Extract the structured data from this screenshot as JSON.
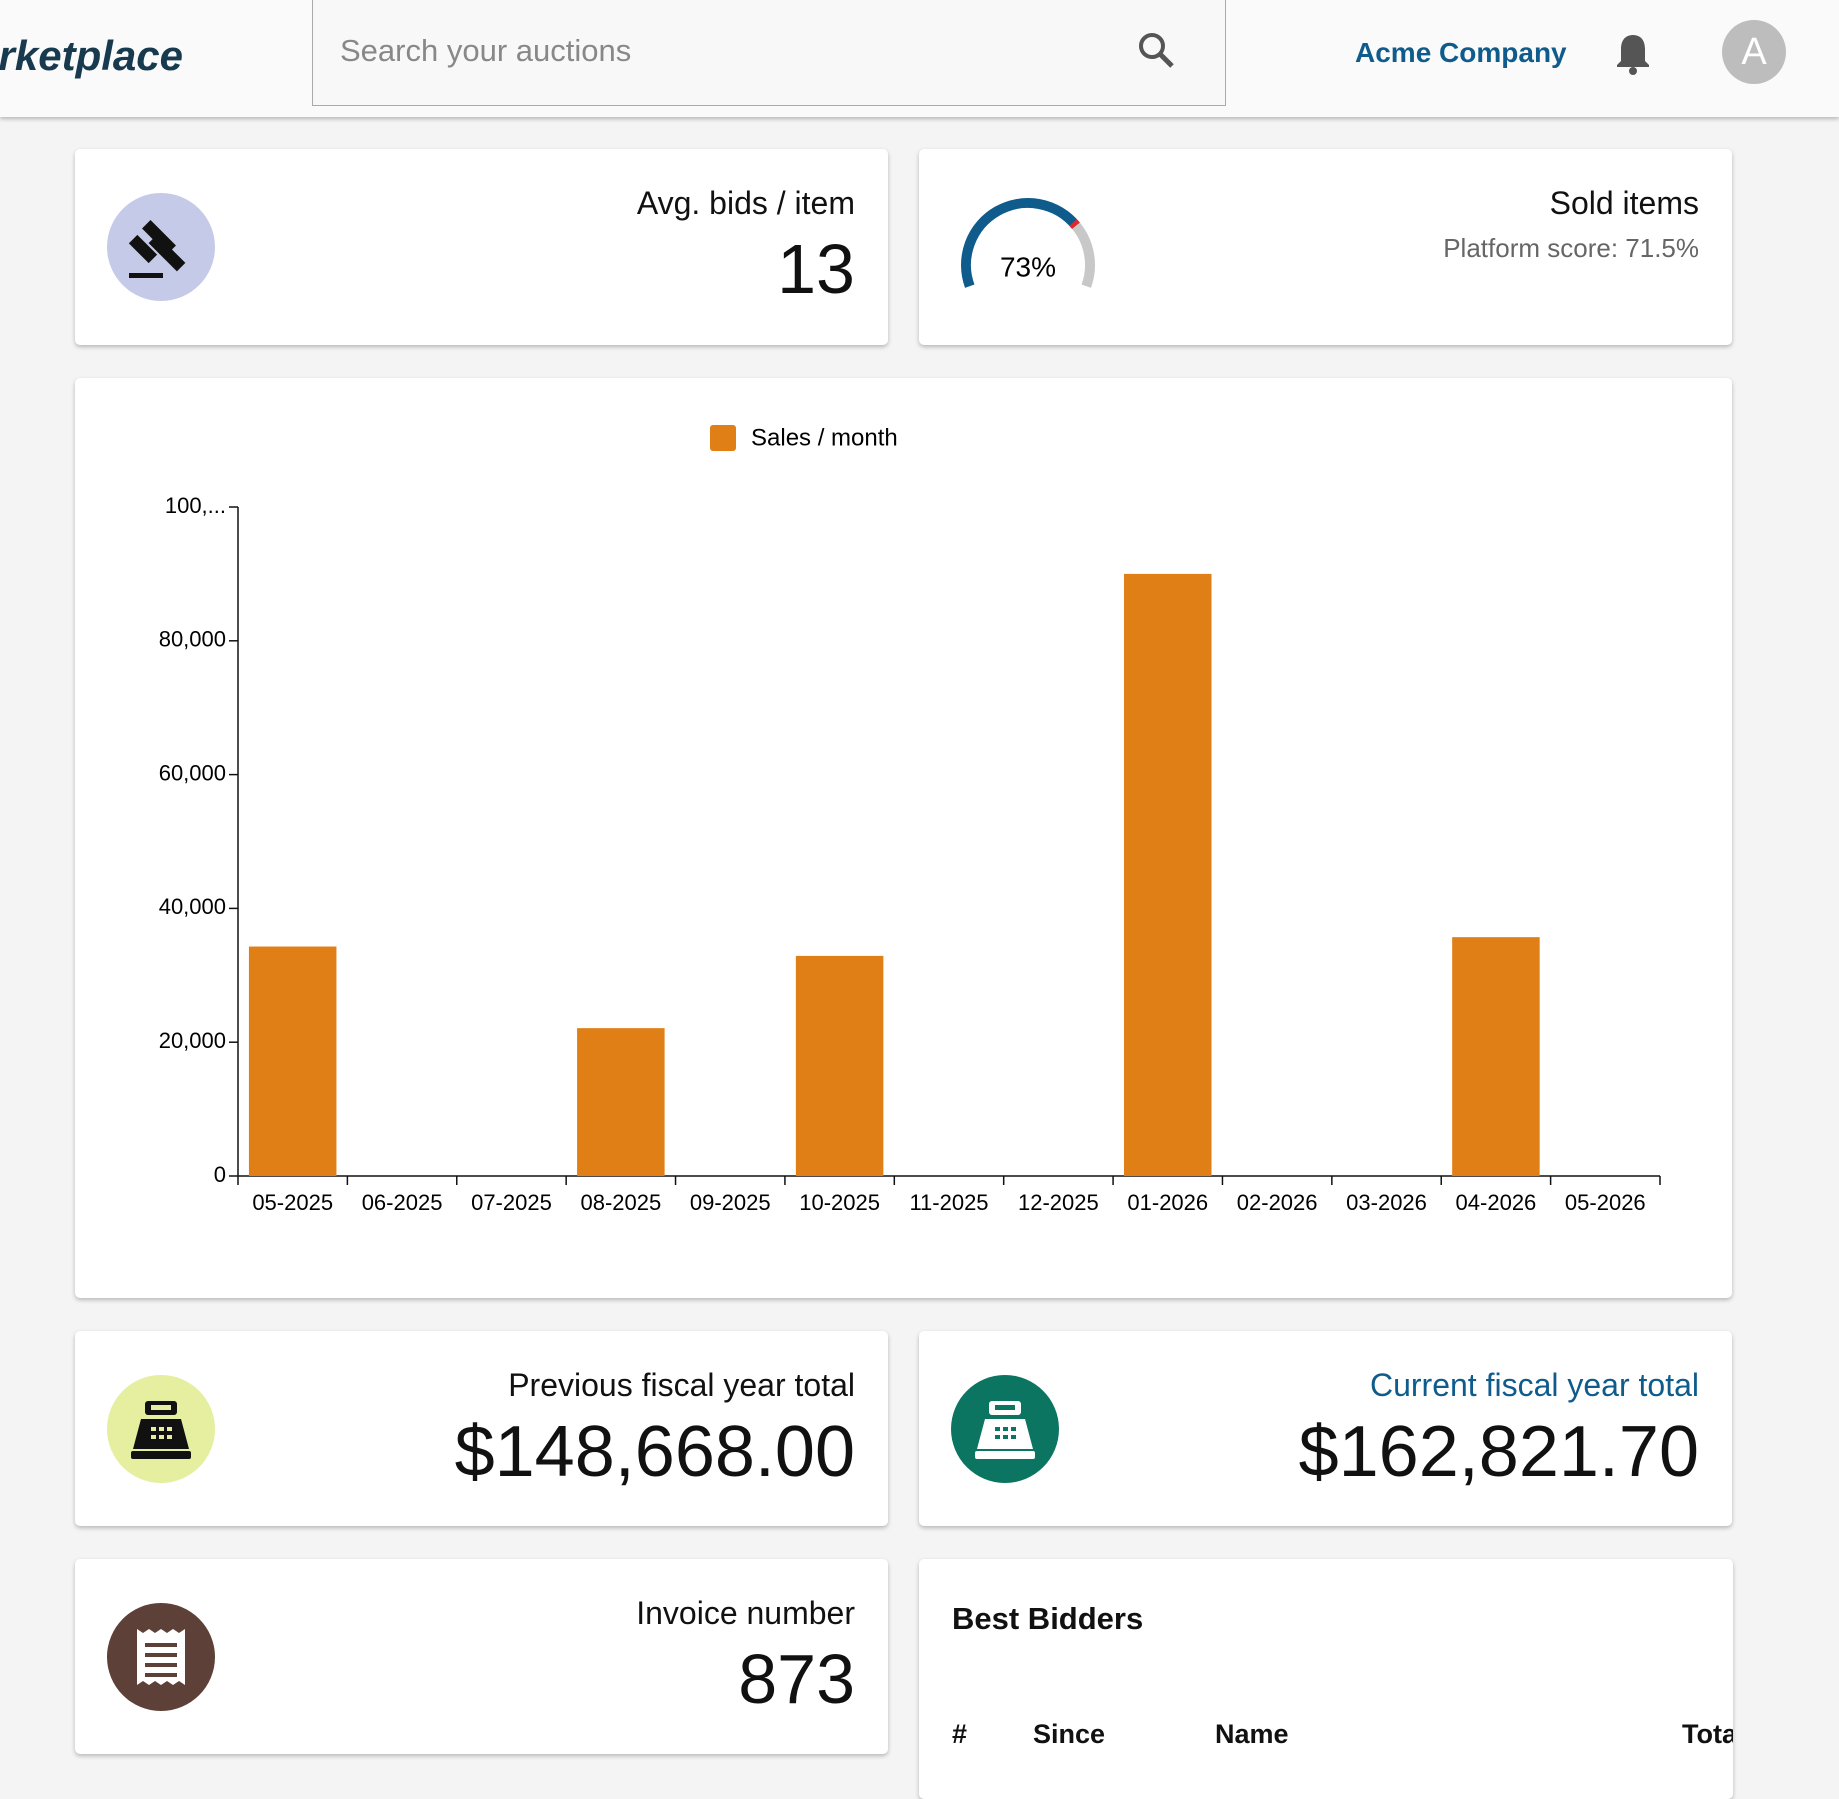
{
  "header": {
    "logo": "Marketplace",
    "search_placeholder": "Search your auctions",
    "company": "Acme Company",
    "avatar": "A"
  },
  "cards": {
    "avg_bids": {
      "title": "Avg. bids / item",
      "value": "13"
    },
    "sold_items": {
      "title": "Sold items",
      "subtitle": "Platform score: 71.5%",
      "gauge_value": 73,
      "gauge_label": "73%"
    },
    "previous_fy": {
      "title": "Previous fiscal year total",
      "value": "$148,668.00"
    },
    "current_fy": {
      "title": "Current fiscal year total",
      "value": "$162,821.70"
    },
    "invoice": {
      "title": "Invoice number",
      "value": "873"
    }
  },
  "best_bidders": {
    "title": "Best Bidders",
    "columns": [
      "#",
      "Since",
      "Name",
      "Total"
    ]
  },
  "chart_data": {
    "type": "bar",
    "categories": [
      "05-2025",
      "06-2025",
      "07-2025",
      "08-2025",
      "09-2025",
      "10-2025",
      "11-2025",
      "12-2025",
      "01-2026",
      "02-2026",
      "03-2026",
      "04-2026",
      "05-2026"
    ],
    "series": [
      {
        "name": "Sales / month",
        "color": "#e07f16",
        "values": [
          34300,
          0,
          0,
          22100,
          0,
          32900,
          0,
          0,
          90000,
          0,
          0,
          35700,
          0
        ]
      }
    ],
    "ylim": [
      0,
      100000
    ],
    "yticks": [
      0,
      {
        "value": 20000,
        "label": "20,000"
      },
      {
        "value": 40000,
        "label": "40,000"
      },
      {
        "value": 60000,
        "label": "60,000"
      },
      {
        "value": 80000,
        "label": "80,000"
      },
      {
        "value": 100000,
        "label": "100,..."
      }
    ],
    "legend": "top"
  }
}
